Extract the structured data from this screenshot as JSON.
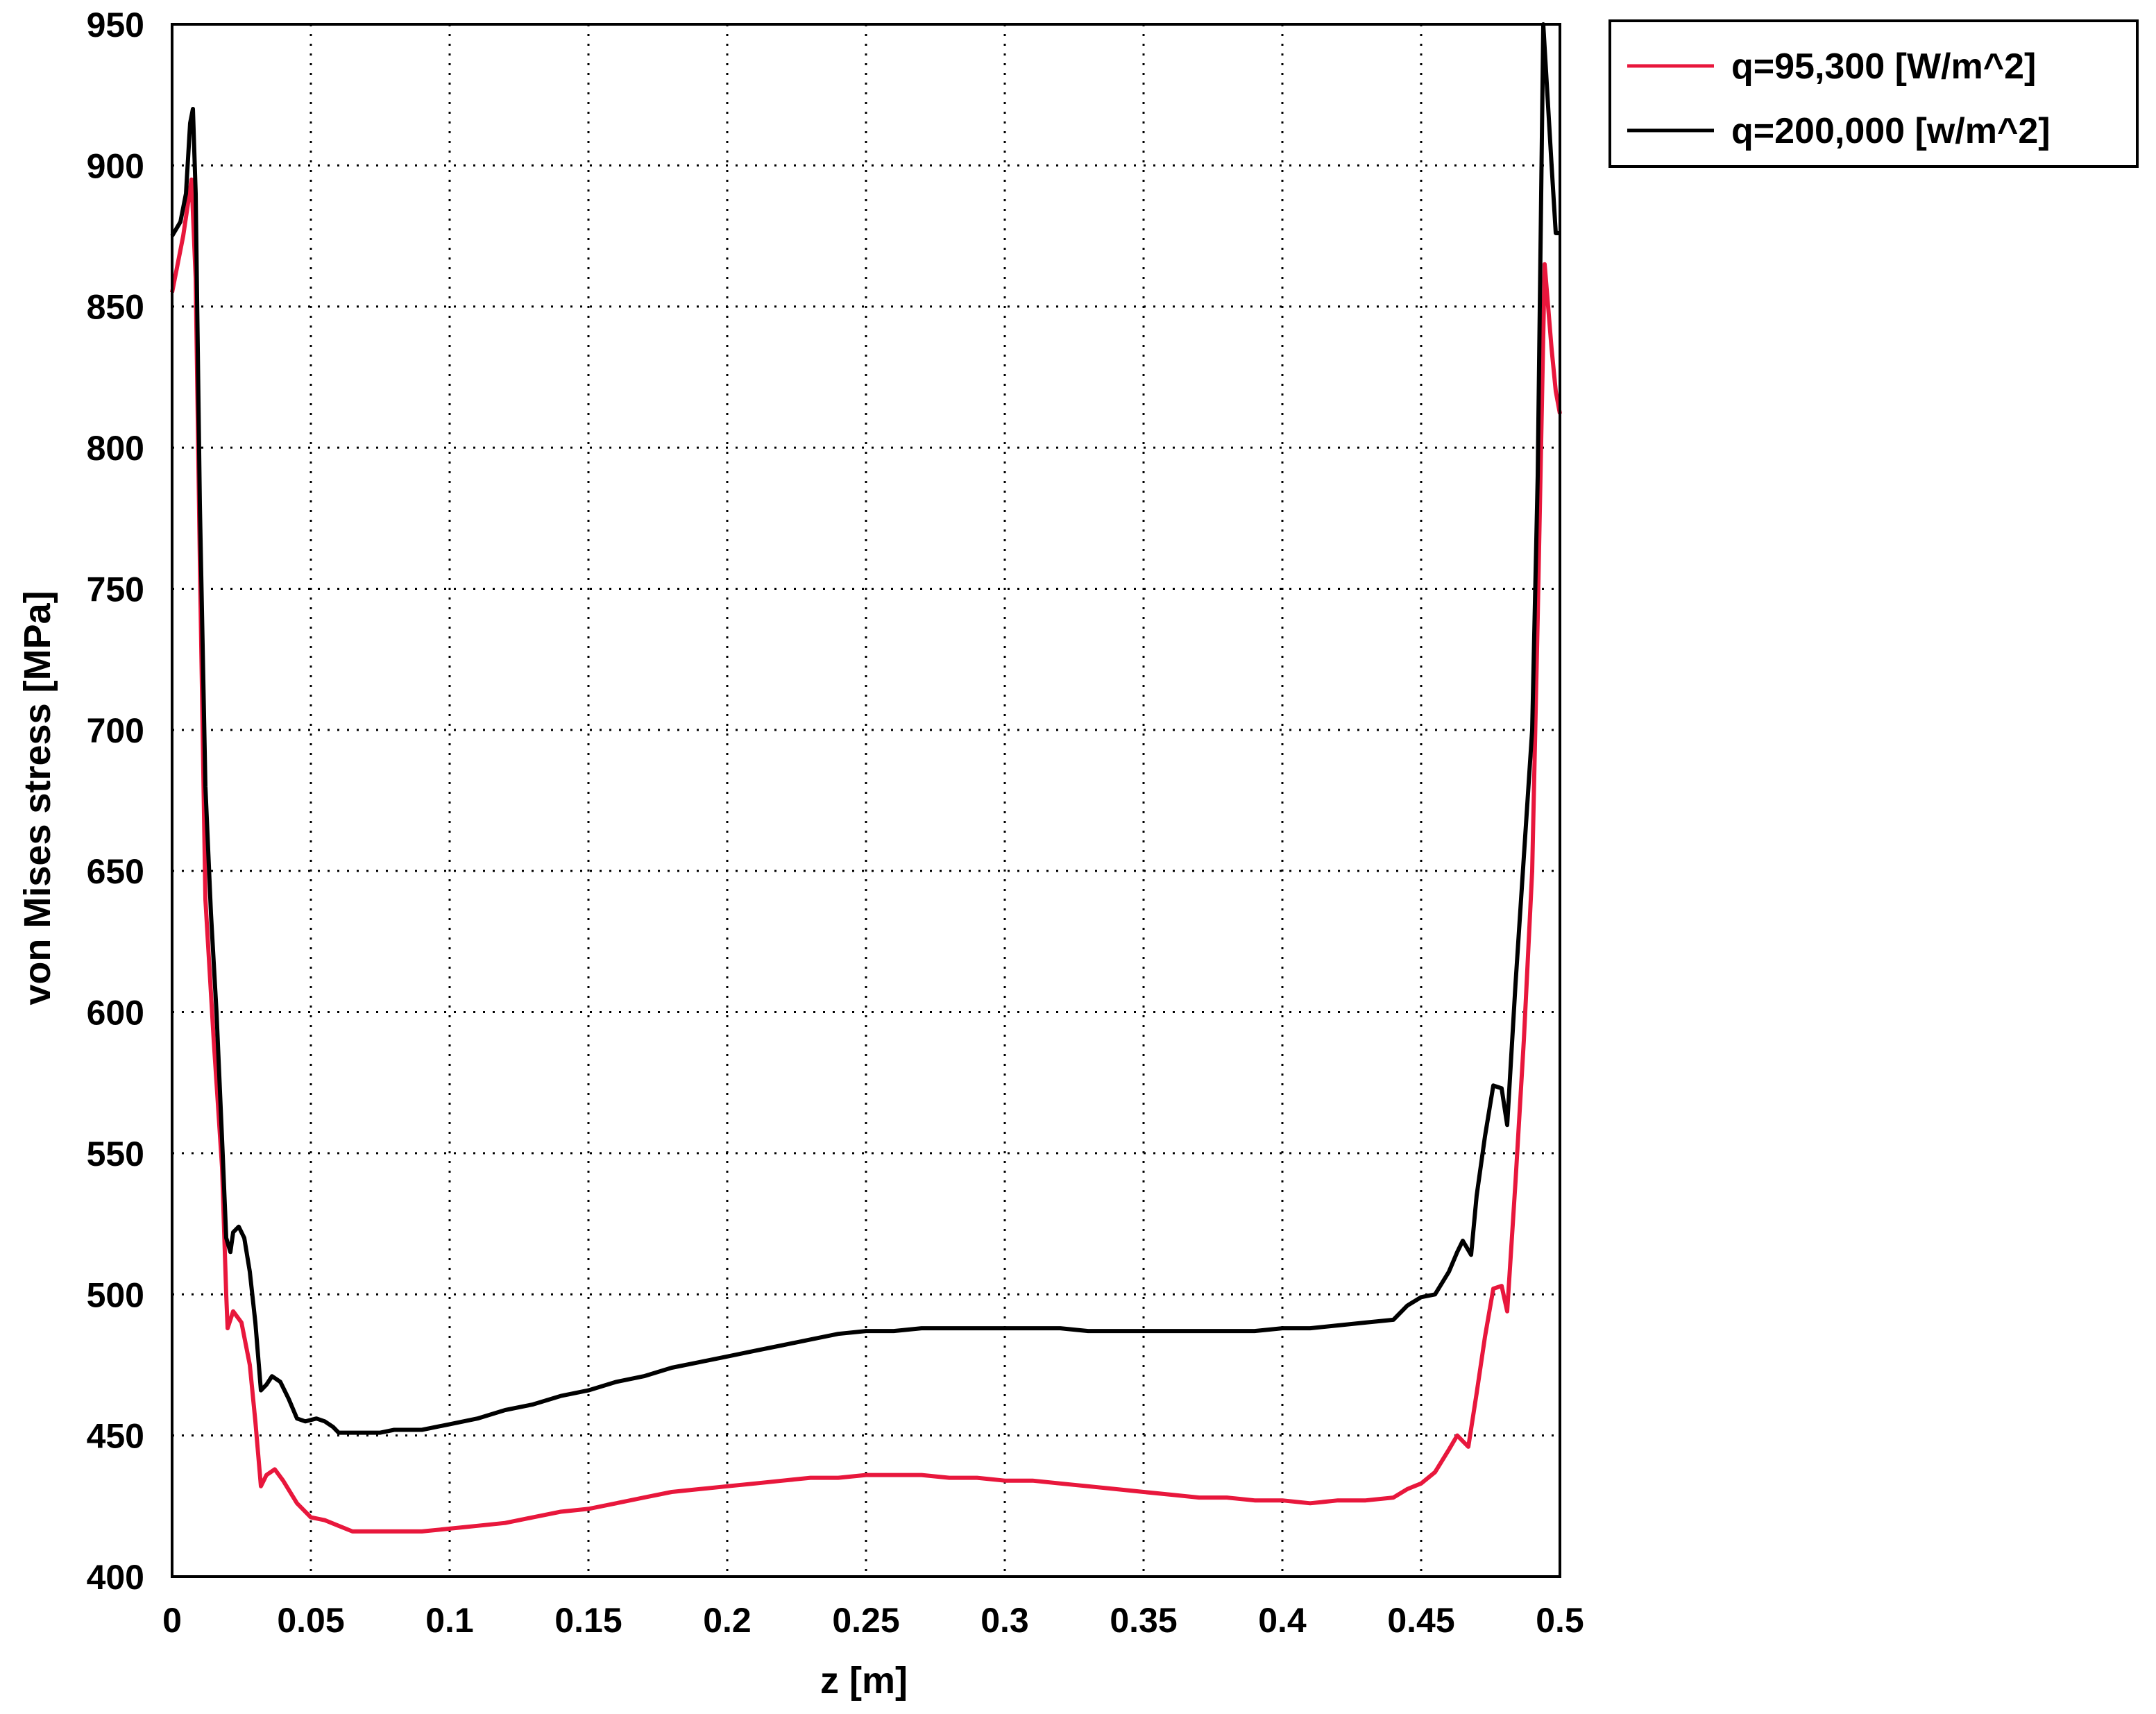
{
  "chart_data": {
    "type": "line",
    "title": "",
    "xlabel": "z [m]",
    "ylabel": "von Mises stress [MPa]",
    "xlim": [
      0,
      0.5
    ],
    "ylim": [
      400,
      950
    ],
    "xticks": [
      "0",
      "0.05",
      "0.1",
      "0.15",
      "0.2",
      "0.25",
      "0.3",
      "0.35",
      "0.4",
      "0.45",
      "0.5"
    ],
    "yticks": [
      "400",
      "450",
      "500",
      "550",
      "600",
      "650",
      "700",
      "750",
      "800",
      "850",
      "900",
      "950"
    ],
    "xtick_values": [
      0,
      0.05,
      0.1,
      0.15,
      0.2,
      0.25,
      0.3,
      0.35,
      0.4,
      0.45,
      0.5
    ],
    "ytick_values": [
      400,
      450,
      500,
      550,
      600,
      650,
      700,
      750,
      800,
      850,
      900,
      950
    ],
    "grid": true,
    "legend_position": "outside-top-right",
    "series": [
      {
        "name": "q=95,300 [W/m^2]",
        "color": "#e8173c",
        "points": [
          [
            0,
            855
          ],
          [
            0.004,
            875
          ],
          [
            0.007,
            895
          ],
          [
            0.0085,
            860
          ],
          [
            0.01,
            760
          ],
          [
            0.012,
            640
          ],
          [
            0.015,
            590
          ],
          [
            0.018,
            545
          ],
          [
            0.0195,
            500
          ],
          [
            0.02,
            488
          ],
          [
            0.022,
            494
          ],
          [
            0.025,
            490
          ],
          [
            0.028,
            475
          ],
          [
            0.03,
            455
          ],
          [
            0.032,
            432
          ],
          [
            0.034,
            436
          ],
          [
            0.037,
            438
          ],
          [
            0.04,
            434
          ],
          [
            0.045,
            426
          ],
          [
            0.05,
            421
          ],
          [
            0.055,
            420
          ],
          [
            0.06,
            418
          ],
          [
            0.065,
            416
          ],
          [
            0.07,
            416
          ],
          [
            0.08,
            416
          ],
          [
            0.09,
            416
          ],
          [
            0.1,
            417
          ],
          [
            0.11,
            418
          ],
          [
            0.12,
            419
          ],
          [
            0.13,
            421
          ],
          [
            0.14,
            423
          ],
          [
            0.15,
            424
          ],
          [
            0.16,
            426
          ],
          [
            0.17,
            428
          ],
          [
            0.18,
            430
          ],
          [
            0.19,
            431
          ],
          [
            0.2,
            432
          ],
          [
            0.21,
            433
          ],
          [
            0.22,
            434
          ],
          [
            0.23,
            435
          ],
          [
            0.24,
            435
          ],
          [
            0.25,
            436
          ],
          [
            0.26,
            436
          ],
          [
            0.27,
            436
          ],
          [
            0.28,
            435
          ],
          [
            0.29,
            435
          ],
          [
            0.3,
            434
          ],
          [
            0.31,
            434
          ],
          [
            0.32,
            433
          ],
          [
            0.33,
            432
          ],
          [
            0.34,
            431
          ],
          [
            0.35,
            430
          ],
          [
            0.36,
            429
          ],
          [
            0.37,
            428
          ],
          [
            0.38,
            428
          ],
          [
            0.39,
            427
          ],
          [
            0.4,
            427
          ],
          [
            0.41,
            426
          ],
          [
            0.42,
            427
          ],
          [
            0.43,
            427
          ],
          [
            0.44,
            428
          ],
          [
            0.445,
            431
          ],
          [
            0.45,
            433
          ],
          [
            0.455,
            437
          ],
          [
            0.46,
            445
          ],
          [
            0.463,
            450
          ],
          [
            0.465,
            448
          ],
          [
            0.467,
            446
          ],
          [
            0.47,
            465
          ],
          [
            0.473,
            485
          ],
          [
            0.476,
            502
          ],
          [
            0.479,
            503
          ],
          [
            0.481,
            494
          ],
          [
            0.484,
            540
          ],
          [
            0.487,
            590
          ],
          [
            0.49,
            650
          ],
          [
            0.492,
            740
          ],
          [
            0.4945,
            865
          ],
          [
            0.497,
            835
          ],
          [
            0.4985,
            820
          ],
          [
            0.5,
            812
          ]
        ]
      },
      {
        "name": "q=200,000 [w/m^2]",
        "color": "#000000",
        "points": [
          [
            0,
            875
          ],
          [
            0.003,
            880
          ],
          [
            0.005,
            890
          ],
          [
            0.0065,
            915
          ],
          [
            0.0075,
            920
          ],
          [
            0.0085,
            890
          ],
          [
            0.01,
            780
          ],
          [
            0.012,
            680
          ],
          [
            0.014,
            635
          ],
          [
            0.016,
            600
          ],
          [
            0.018,
            555
          ],
          [
            0.0195,
            520
          ],
          [
            0.021,
            515
          ],
          [
            0.022,
            522
          ],
          [
            0.024,
            524
          ],
          [
            0.026,
            520
          ],
          [
            0.028,
            508
          ],
          [
            0.03,
            490
          ],
          [
            0.032,
            466
          ],
          [
            0.034,
            468
          ],
          [
            0.036,
            471
          ],
          [
            0.039,
            469
          ],
          [
            0.042,
            463
          ],
          [
            0.045,
            456
          ],
          [
            0.048,
            455
          ],
          [
            0.052,
            456
          ],
          [
            0.055,
            455
          ],
          [
            0.058,
            453
          ],
          [
            0.06,
            451
          ],
          [
            0.065,
            451
          ],
          [
            0.07,
            451
          ],
          [
            0.075,
            451
          ],
          [
            0.08,
            452
          ],
          [
            0.09,
            452
          ],
          [
            0.1,
            454
          ],
          [
            0.11,
            456
          ],
          [
            0.12,
            459
          ],
          [
            0.13,
            461
          ],
          [
            0.14,
            464
          ],
          [
            0.15,
            466
          ],
          [
            0.16,
            469
          ],
          [
            0.17,
            471
          ],
          [
            0.18,
            474
          ],
          [
            0.19,
            476
          ],
          [
            0.2,
            478
          ],
          [
            0.21,
            480
          ],
          [
            0.22,
            482
          ],
          [
            0.23,
            484
          ],
          [
            0.24,
            486
          ],
          [
            0.25,
            487
          ],
          [
            0.26,
            487
          ],
          [
            0.27,
            488
          ],
          [
            0.28,
            488
          ],
          [
            0.29,
            488
          ],
          [
            0.3,
            488
          ],
          [
            0.31,
            488
          ],
          [
            0.32,
            488
          ],
          [
            0.33,
            487
          ],
          [
            0.34,
            487
          ],
          [
            0.35,
            487
          ],
          [
            0.36,
            487
          ],
          [
            0.37,
            487
          ],
          [
            0.38,
            487
          ],
          [
            0.39,
            487
          ],
          [
            0.4,
            488
          ],
          [
            0.41,
            488
          ],
          [
            0.42,
            489
          ],
          [
            0.43,
            490
          ],
          [
            0.44,
            491
          ],
          [
            0.445,
            496
          ],
          [
            0.45,
            499
          ],
          [
            0.455,
            500
          ],
          [
            0.46,
            508
          ],
          [
            0.463,
            515
          ],
          [
            0.465,
            519
          ],
          [
            0.468,
            514
          ],
          [
            0.47,
            535
          ],
          [
            0.473,
            556
          ],
          [
            0.476,
            574
          ],
          [
            0.479,
            573
          ],
          [
            0.481,
            560
          ],
          [
            0.484,
            610
          ],
          [
            0.487,
            655
          ],
          [
            0.49,
            700
          ],
          [
            0.492,
            790
          ],
          [
            0.494,
            950
          ],
          [
            0.497,
            900
          ],
          [
            0.4985,
            876
          ],
          [
            0.5,
            876
          ]
        ]
      }
    ]
  }
}
